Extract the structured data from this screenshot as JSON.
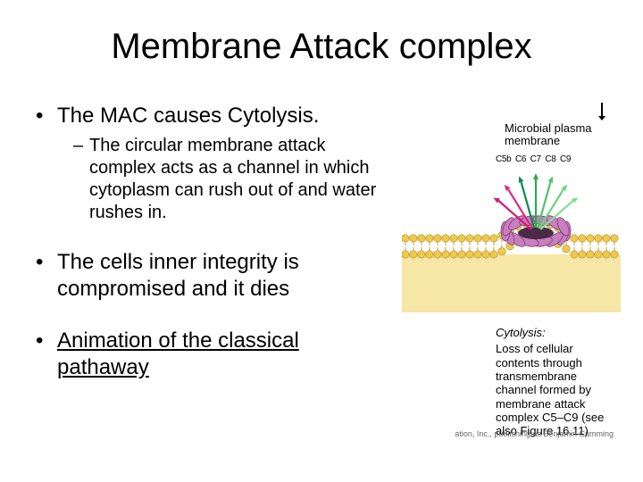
{
  "title": "Membrane Attack complex",
  "bullets": {
    "b1": "The MAC causes Cytolysis.",
    "b1_sub": "The circular membrane attack complex acts as a channel in which cytoplasm can rush out of and water rushes in.",
    "b2": "The cells inner integrity is compromised and it dies",
    "b3": "Animation of the classical pathaway"
  },
  "figure": {
    "plasma_label_l1": "Microbial plasma",
    "plasma_label_l2": "membrane",
    "proteins": [
      "C5b",
      "C6",
      "C7",
      "C8",
      "C9"
    ],
    "caption_title": "Cytolysis:",
    "caption_body": "Loss of cellular contents through transmembrane channel formed by membrane attack complex C5–C9 (see also Figure 16.11)",
    "credit": "ation, Inc., publishing as Benjamin Cumming",
    "colors": {
      "extracellular": "#ffffff",
      "cytoplasm": "#f7e7a6",
      "lipid_head": "#f0c94a",
      "lipid_head_stroke": "#b08a1f",
      "protein_fill": "#c97fbf",
      "protein_stroke": "#7a3d74",
      "arrow_colors": [
        "#d11a7a",
        "#e02885",
        "#0a8a4a",
        "#2da84f",
        "#4fc36c",
        "#6ad37f",
        "#86dc92"
      ]
    }
  }
}
